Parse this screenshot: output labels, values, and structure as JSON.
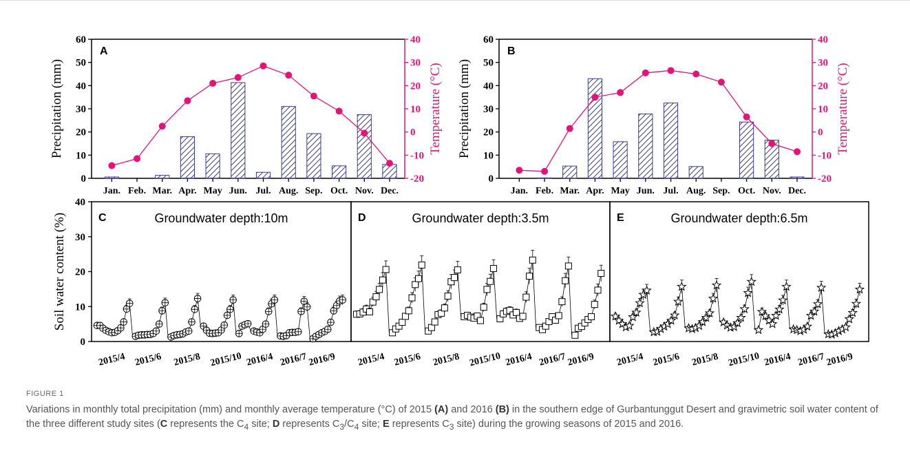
{
  "colors": {
    "bar_stroke": "#3a3a9a",
    "temp_line": "#e6127a",
    "axis": "#000000",
    "caption": "#555555"
  },
  "axis_text": {
    "precip_label": "Precipitation (mm)",
    "temp_label": "Temperature (°C)",
    "swc_label": "Soil water content (%)"
  },
  "chart_data": [
    {
      "type": "bar",
      "panel": "A",
      "categories": [
        "Jan.",
        "Feb.",
        "Mar.",
        "Apr.",
        "May",
        "Jun.",
        "Jul.",
        "Aug.",
        "Sep.",
        "Oct.",
        "Nov.",
        "Dec."
      ],
      "series": [
        {
          "values": [
            0.6,
            0,
            1.3,
            18,
            10.6,
            41.3,
            2.6,
            31,
            19.3,
            5.4,
            27.5,
            6
          ]
        },
        {
          "values": [
            -14.5,
            -11.5,
            2.5,
            13.5,
            21,
            23.5,
            28.5,
            24.5,
            15.5,
            9,
            -0.5,
            -13.5
          ],
          "type": "line"
        }
      ],
      "ylabel": "Precipitation (mm)",
      "y2label": "Temperature (°C)",
      "ylim": [
        0,
        60
      ],
      "y2lim": [
        -20,
        40
      ],
      "yticks": [
        0,
        10,
        20,
        30,
        40,
        50,
        60
      ],
      "y2ticks": [
        -20,
        -10,
        0,
        10,
        20,
        30,
        40
      ]
    },
    {
      "type": "bar",
      "panel": "B",
      "categories": [
        "Jan.",
        "Feb.",
        "Mar.",
        "Apr.",
        "May",
        "Jun.",
        "Jul.",
        "Aug.",
        "Sep.",
        "Oct.",
        "Nov.",
        "Dec."
      ],
      "series": [
        {
          "values": [
            0,
            0.2,
            5.3,
            43,
            15.8,
            27.8,
            32.5,
            5.1,
            0,
            24.3,
            16.5,
            0.6
          ]
        },
        {
          "values": [
            -16.5,
            -17,
            1.5,
            15,
            17,
            25.5,
            26.5,
            25,
            21.5,
            6.5,
            -5,
            -8.5
          ],
          "type": "line"
        }
      ],
      "ylabel": "Precipitation (mm)",
      "y2label": "Temperature (°C)",
      "ylim": [
        0,
        60
      ],
      "y2lim": [
        -20,
        40
      ],
      "yticks": [
        0,
        10,
        20,
        30,
        40,
        50,
        60
      ],
      "y2ticks": [
        -20,
        -10,
        0,
        10,
        20,
        30,
        40
      ]
    },
    {
      "type": "scatter",
      "panel": "C",
      "title": "Groundwater depth:10m",
      "marker": "circle-plus",
      "x": [
        "2015/4",
        "2015/6",
        "2015/8",
        "2015/10",
        "2016/4",
        "2016/7",
        "2016/9"
      ],
      "segments": [
        [
          4.6,
          4.6,
          3.8,
          3.2,
          2.8,
          2.5,
          2.6,
          3.1,
          3.9,
          5.6,
          9.3,
          10.9
        ],
        [
          1.5,
          1.8,
          1.9,
          1.9,
          2.0,
          2.0,
          2.3,
          3.0,
          5.0,
          8.8,
          11.1
        ],
        [
          1.3,
          1.7,
          1.9,
          2.0,
          2.2,
          2.7,
          3.0,
          5.6,
          9.2,
          12.3
        ],
        [
          4.4,
          3.2,
          2.4,
          2.3,
          2.4,
          2.5,
          3.3,
          4.7,
          7.5,
          9.2,
          11.9
        ],
        [
          2.3,
          4.4,
          4.8,
          5.1
        ],
        [
          3.0,
          2.7,
          2.5,
          3.5,
          5.0,
          8.6,
          10.8,
          11.9
        ],
        [
          1.6,
          1.5,
          1.7,
          2.5,
          2.6,
          2.6,
          2.8,
          8.6,
          11.5,
          9.9
        ],
        [
          0.8,
          1.5,
          2.0,
          2.5,
          2.9,
          3.5,
          5.5,
          8.8,
          10.3,
          11.6,
          11.9
        ]
      ],
      "ylabel": "Soil water content (%)",
      "ylim": [
        0,
        40
      ],
      "yticks": [
        0,
        10,
        20,
        30,
        40
      ]
    },
    {
      "type": "scatter",
      "panel": "D",
      "title": "Groundwater depth:3.5m",
      "marker": "square",
      "x": [
        "2015/4",
        "2015/6",
        "2015/8",
        "2015/10",
        "2016/4",
        "2016/7",
        "2016/9"
      ],
      "segments": [
        [
          7.8,
          7.9,
          8.4,
          9.3,
          8.5,
          11.3,
          12.8,
          14.9,
          17.6,
          20.6
        ],
        [
          2.5,
          3.6,
          4.4,
          5.5,
          7.2,
          8.8,
          12.5,
          16.3,
          18.0,
          21.9
        ],
        [
          3.0,
          4.0,
          5.6,
          7.7,
          8.1,
          9.6,
          13.0,
          17.1,
          18.3,
          20.5
        ],
        [
          7.1,
          7.5,
          7.0,
          6.7,
          7.3,
          6.0,
          9.8,
          14.9,
          17.2,
          20.9
        ],
        [
          6.5,
          7.9,
          8.6,
          8.9,
          7.6,
          8.3,
          6.6,
          7.2,
          12.7,
          18.7,
          23.3
        ],
        [
          4.0,
          3.4,
          4.4,
          5.7,
          7.1,
          6.1,
          7.4,
          11.4,
          17.4,
          21.6
        ],
        [
          1.8,
          3.8,
          4.3,
          5.3,
          6.3,
          7.1,
          10.6,
          14.7,
          19.5
        ]
      ],
      "ylim": [
        0,
        40
      ]
    },
    {
      "type": "scatter",
      "panel": "E",
      "title": "Groundwater depth:6.5m",
      "marker": "star",
      "x": [
        "2015/4",
        "2015/6",
        "2015/8",
        "2015/10",
        "2016/4",
        "2016/7",
        "2016/9"
      ],
      "segments": [
        [
          7.2,
          6.0,
          5.0,
          4.1,
          4.5,
          7.0,
          8.3,
          11.0,
          13.4,
          14.6
        ],
        [
          2.7,
          2.8,
          3.6,
          4.3,
          5.0,
          6.0,
          7.5,
          11.4,
          15.7
        ],
        [
          3.8,
          3.6,
          3.9,
          4.5,
          5.6,
          6.8,
          8.1,
          12.3,
          16.1
        ],
        [
          5.5,
          4.6,
          4.0,
          4.2,
          5.3,
          6.8,
          9.3,
          13.9,
          17.1
        ],
        [
          3.3,
          8.5,
          7.3,
          6.0,
          5.0,
          7.4,
          9.2,
          11.8,
          15.7
        ],
        [
          3.5,
          3.3,
          3.0,
          3.4,
          4.3,
          7.4,
          8.6,
          10.7,
          15.4
        ],
        [
          2.1,
          2.0,
          2.4,
          3.0,
          3.5,
          4.1,
          6.4,
          8.2,
          10.8,
          14.9
        ]
      ],
      "ylim": [
        0,
        40
      ]
    }
  ],
  "caption": {
    "label": "FIGURE 1",
    "text_1": "Variations in monthly total precipitation (mm) and monthly average temperature (°C) of 2015 ",
    "ref_a": "(A)",
    "text_2": " and 2016 ",
    "ref_b": "(B)",
    "text_3": " in the southern edge of Gurbantunggut Desert and gravimetric soil water content of the three different study sites (",
    "ref_c": "C",
    "text_4": " represents the C",
    "sub_4": "4",
    "text_5": " site; ",
    "ref_d": "D",
    "text_6": " represents C",
    "sub_3a": "3",
    "text_7": "/C",
    "sub_4b": "4",
    "text_8": " site; ",
    "ref_e": "E",
    "text_9": " represents C",
    "sub_3b": "3",
    "text_10": " site) during the growing seasons of 2015 and 2016."
  }
}
